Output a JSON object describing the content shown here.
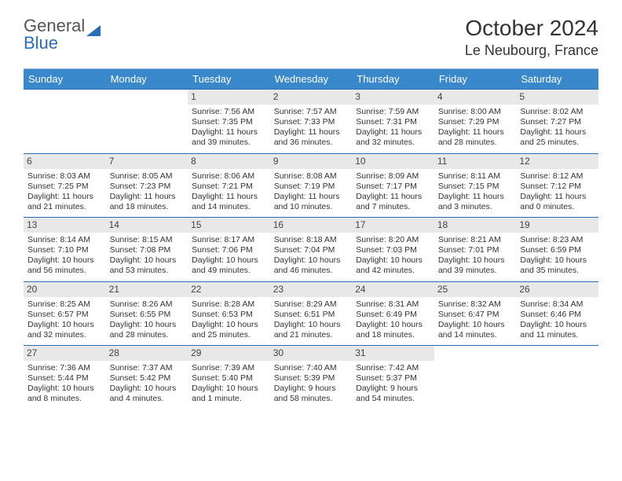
{
  "logo": {
    "part1": "General",
    "part2": "Blue"
  },
  "header": {
    "month": "October 2024",
    "location": "Le Neubourg, France"
  },
  "colors": {
    "headerBg": "#3a88cc",
    "headerText": "#ffffff",
    "border": "#2a6fb5",
    "dayBg": "#e8e8e8",
    "bodyText": "#333333"
  },
  "dayNames": [
    "Sunday",
    "Monday",
    "Tuesday",
    "Wednesday",
    "Thursday",
    "Friday",
    "Saturday"
  ],
  "weeks": [
    [
      null,
      null,
      {
        "n": "1",
        "sr": "7:56 AM",
        "ss": "7:35 PM",
        "dl": "11 hours and 39 minutes."
      },
      {
        "n": "2",
        "sr": "7:57 AM",
        "ss": "7:33 PM",
        "dl": "11 hours and 36 minutes."
      },
      {
        "n": "3",
        "sr": "7:59 AM",
        "ss": "7:31 PM",
        "dl": "11 hours and 32 minutes."
      },
      {
        "n": "4",
        "sr": "8:00 AM",
        "ss": "7:29 PM",
        "dl": "11 hours and 28 minutes."
      },
      {
        "n": "5",
        "sr": "8:02 AM",
        "ss": "7:27 PM",
        "dl": "11 hours and 25 minutes."
      }
    ],
    [
      {
        "n": "6",
        "sr": "8:03 AM",
        "ss": "7:25 PM",
        "dl": "11 hours and 21 minutes."
      },
      {
        "n": "7",
        "sr": "8:05 AM",
        "ss": "7:23 PM",
        "dl": "11 hours and 18 minutes."
      },
      {
        "n": "8",
        "sr": "8:06 AM",
        "ss": "7:21 PM",
        "dl": "11 hours and 14 minutes."
      },
      {
        "n": "9",
        "sr": "8:08 AM",
        "ss": "7:19 PM",
        "dl": "11 hours and 10 minutes."
      },
      {
        "n": "10",
        "sr": "8:09 AM",
        "ss": "7:17 PM",
        "dl": "11 hours and 7 minutes."
      },
      {
        "n": "11",
        "sr": "8:11 AM",
        "ss": "7:15 PM",
        "dl": "11 hours and 3 minutes."
      },
      {
        "n": "12",
        "sr": "8:12 AM",
        "ss": "7:12 PM",
        "dl": "11 hours and 0 minutes."
      }
    ],
    [
      {
        "n": "13",
        "sr": "8:14 AM",
        "ss": "7:10 PM",
        "dl": "10 hours and 56 minutes."
      },
      {
        "n": "14",
        "sr": "8:15 AM",
        "ss": "7:08 PM",
        "dl": "10 hours and 53 minutes."
      },
      {
        "n": "15",
        "sr": "8:17 AM",
        "ss": "7:06 PM",
        "dl": "10 hours and 49 minutes."
      },
      {
        "n": "16",
        "sr": "8:18 AM",
        "ss": "7:04 PM",
        "dl": "10 hours and 46 minutes."
      },
      {
        "n": "17",
        "sr": "8:20 AM",
        "ss": "7:03 PM",
        "dl": "10 hours and 42 minutes."
      },
      {
        "n": "18",
        "sr": "8:21 AM",
        "ss": "7:01 PM",
        "dl": "10 hours and 39 minutes."
      },
      {
        "n": "19",
        "sr": "8:23 AM",
        "ss": "6:59 PM",
        "dl": "10 hours and 35 minutes."
      }
    ],
    [
      {
        "n": "20",
        "sr": "8:25 AM",
        "ss": "6:57 PM",
        "dl": "10 hours and 32 minutes."
      },
      {
        "n": "21",
        "sr": "8:26 AM",
        "ss": "6:55 PM",
        "dl": "10 hours and 28 minutes."
      },
      {
        "n": "22",
        "sr": "8:28 AM",
        "ss": "6:53 PM",
        "dl": "10 hours and 25 minutes."
      },
      {
        "n": "23",
        "sr": "8:29 AM",
        "ss": "6:51 PM",
        "dl": "10 hours and 21 minutes."
      },
      {
        "n": "24",
        "sr": "8:31 AM",
        "ss": "6:49 PM",
        "dl": "10 hours and 18 minutes."
      },
      {
        "n": "25",
        "sr": "8:32 AM",
        "ss": "6:47 PM",
        "dl": "10 hours and 14 minutes."
      },
      {
        "n": "26",
        "sr": "8:34 AM",
        "ss": "6:46 PM",
        "dl": "10 hours and 11 minutes."
      }
    ],
    [
      {
        "n": "27",
        "sr": "7:36 AM",
        "ss": "5:44 PM",
        "dl": "10 hours and 8 minutes."
      },
      {
        "n": "28",
        "sr": "7:37 AM",
        "ss": "5:42 PM",
        "dl": "10 hours and 4 minutes."
      },
      {
        "n": "29",
        "sr": "7:39 AM",
        "ss": "5:40 PM",
        "dl": "10 hours and 1 minute."
      },
      {
        "n": "30",
        "sr": "7:40 AM",
        "ss": "5:39 PM",
        "dl": "9 hours and 58 minutes."
      },
      {
        "n": "31",
        "sr": "7:42 AM",
        "ss": "5:37 PM",
        "dl": "9 hours and 54 minutes."
      },
      null,
      null
    ]
  ],
  "labels": {
    "sunrise": "Sunrise: ",
    "sunset": "Sunset: ",
    "daylight": "Daylight: "
  }
}
